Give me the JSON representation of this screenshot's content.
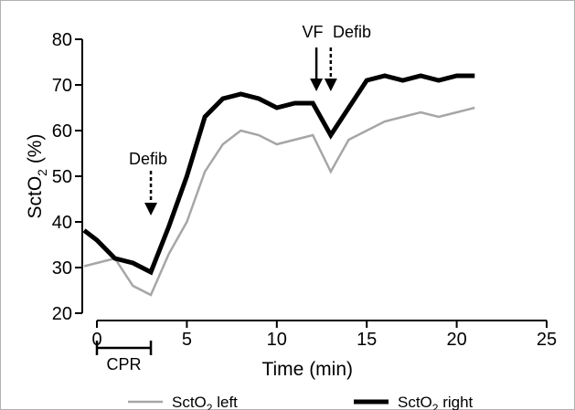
{
  "chart_data": {
    "type": "line",
    "title": "",
    "xlabel": "Time (min)",
    "ylabel": "SctO₂ (%)",
    "ylabel_base": "SctO",
    "ylabel_sub": "2",
    "ylabel_tail": " (%)",
    "xlim": [
      0,
      25
    ],
    "ylim": [
      20,
      80
    ],
    "xticks": [
      0,
      5,
      10,
      15,
      20,
      25
    ],
    "yticks": [
      20,
      30,
      40,
      50,
      60,
      70,
      80
    ],
    "grid": false,
    "legend_position": "bottom",
    "series": [
      {
        "name": "SctO₂ left",
        "legend_base": "SctO",
        "legend_sub": "2",
        "legend_tail": " left",
        "color": "#a6a6a6",
        "x": [
          -1,
          0,
          1,
          2,
          3,
          4,
          5,
          6,
          7,
          8,
          9,
          10,
          11,
          12,
          13,
          14,
          15,
          16,
          17,
          18,
          19,
          20,
          21
        ],
        "y": [
          30,
          31,
          32,
          26,
          24,
          33,
          40,
          51,
          57,
          60,
          59,
          57,
          58,
          59,
          51,
          58,
          60,
          62,
          63,
          64,
          63,
          64,
          65
        ]
      },
      {
        "name": "SctO₂ right",
        "legend_base": "SctO",
        "legend_sub": "2",
        "legend_tail": " right",
        "color": "#000000",
        "x": [
          -1,
          0,
          1,
          2,
          3,
          4,
          5,
          6,
          7,
          8,
          9,
          10,
          11,
          12,
          13,
          14,
          15,
          16,
          17,
          18,
          19,
          20,
          21
        ],
        "y": [
          39,
          36,
          32,
          31,
          29,
          39,
          50,
          63,
          67,
          68,
          67,
          65,
          66,
          66,
          59,
          65,
          71,
          72,
          71,
          72,
          71,
          72,
          72
        ]
      }
    ],
    "annotations": [
      {
        "text": "Defib",
        "x": 3,
        "arrow": "dashed"
      },
      {
        "text": "VF",
        "x": 12.2,
        "arrow": "solid"
      },
      {
        "text": "Defib",
        "x": 13,
        "arrow": "dashed"
      }
    ],
    "interval": {
      "label": "CPR",
      "x_start": 0,
      "x_end": 3
    }
  }
}
